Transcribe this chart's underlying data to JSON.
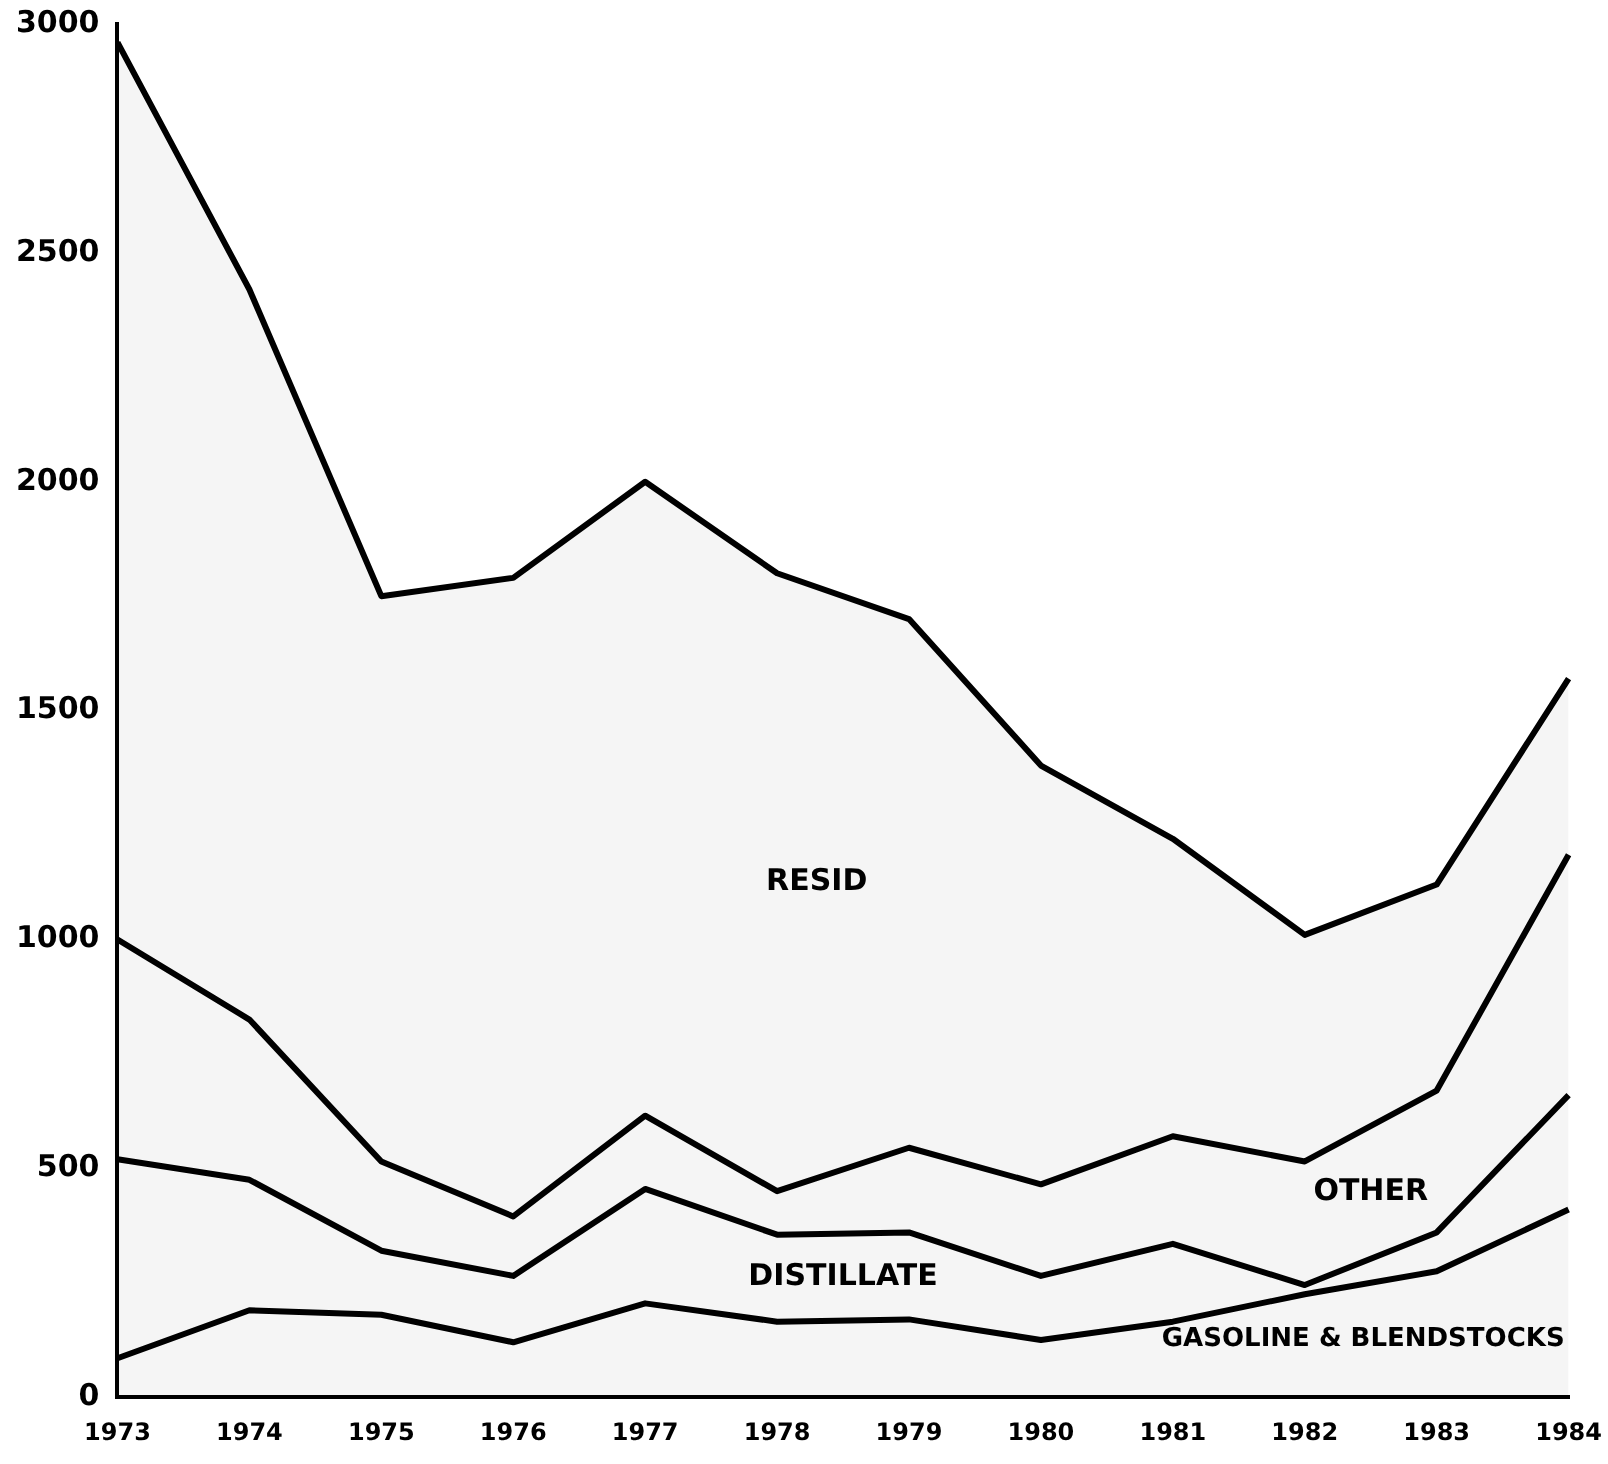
{
  "chart_data": {
    "type": "area",
    "stacked": true,
    "categories": [
      "1973",
      "1974",
      "1975",
      "1976",
      "1977",
      "1978",
      "1979",
      "1980",
      "1981",
      "1982",
      "1983",
      "1984"
    ],
    "series": [
      {
        "name": "GASOLINE & BLENDSTOCKS",
        "color": "#000000",
        "values": [
          85,
          190,
          180,
          120,
          205,
          165,
          170,
          125,
          165,
          225,
          275,
          410
        ]
      },
      {
        "name": "DISTILLATE",
        "color": "#000000",
        "values": [
          435,
          285,
          140,
          145,
          250,
          190,
          190,
          140,
          170,
          20,
          85,
          250
        ]
      },
      {
        "name": "OTHER",
        "color": "#000000",
        "values": [
          480,
          350,
          195,
          130,
          160,
          95,
          185,
          200,
          235,
          270,
          310,
          525
        ]
      },
      {
        "name": "RESID",
        "color": "#000000",
        "values": [
          1960,
          1595,
          1235,
          1395,
          1385,
          1350,
          1155,
          915,
          650,
          495,
          450,
          385
        ]
      }
    ],
    "ylim": [
      0,
      3000
    ],
    "yticks": [
      0,
      500,
      1000,
      1500,
      2000,
      2500,
      3000
    ],
    "grid": false,
    "legend": false
  }
}
